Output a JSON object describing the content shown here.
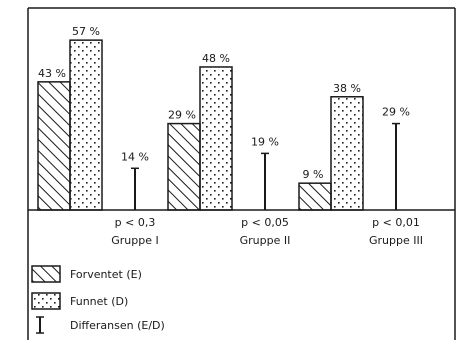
{
  "chart_data": {
    "type": "bar",
    "title": "",
    "xlabel": "",
    "ylabel": "",
    "ylim": [
      0,
      60
    ],
    "groups": [
      {
        "label": "Gruppe I",
        "p_text": "p < 0,3"
      },
      {
        "label": "Gruppe II",
        "p_text": "p < 0,05"
      },
      {
        "label": "Gruppe III",
        "p_text": "p < 0,01"
      }
    ],
    "series": [
      {
        "name": "Forventet (E)",
        "values": [
          43,
          29,
          9
        ],
        "labels": [
          "43 %",
          "29 %",
          "9 %"
        ],
        "pattern": "hatch"
      },
      {
        "name": "Funnet (D)",
        "values": [
          57,
          48,
          38
        ],
        "labels": [
          "57 %",
          "48 %",
          "38 %"
        ],
        "pattern": "dots"
      },
      {
        "name": "Differansen (E/D)",
        "values": [
          14,
          19,
          29
        ],
        "labels": [
          "14 %",
          "19 %",
          "29 %"
        ],
        "pattern": "line"
      }
    ],
    "legend_position": "bottom-left",
    "colors": {
      "ink": "#1a1a1a",
      "paper": "#ffffff"
    }
  }
}
